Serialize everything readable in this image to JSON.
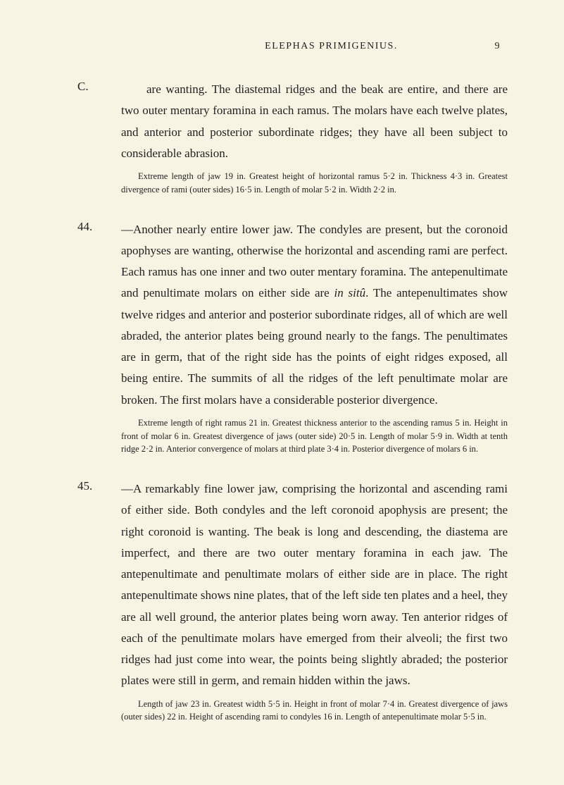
{
  "header": {
    "running_title": "ELEPHAS PRIMIGENIUS.",
    "page_number": "9"
  },
  "entries": [
    {
      "label": "C.",
      "paragraphs": [
        "are wanting. The diastemal ridges and the beak are entire, and there are two outer mentary foramina in each ramus. The molars have each twelve plates, and anterior and posterior subordinate ridges; they have all been subject to considerable abrasion."
      ],
      "note": "Extreme length of jaw 19 in. Greatest height of horizontal ramus 5·2 in. Thickness 4·3 in. Greatest divergence of rami (outer sides) 16·5 in. Length of molar 5·2 in. Width 2·2 in."
    },
    {
      "label": "44.",
      "paragraphs": [
        "—Another nearly entire lower jaw. The condyles are present, but the coronoid apophyses are wanting, otherwise the horizontal and ascending rami are perfect. Each ramus has one inner and two outer mentary foramina. The antepenultimate and penultimate molars on either side are ",
        "in sitû",
        ". The antepenultimates show twelve ridges and anterior and posterior subordinate ridges, all of which are well abraded, the anterior plates being ground nearly to the fangs. The penultimates are in germ, that of the right side has the points of eight ridges exposed, all being entire. The summits of all the ridges of the left penultimate molar are broken. The first molars have a considerable posterior divergence."
      ],
      "note": "Extreme length of right ramus 21 in. Greatest thickness anterior to the ascending ramus 5 in. Height in front of molar 6 in. Greatest divergence of jaws (outer side) 20·5 in. Length of molar 5·9 in. Width at tenth ridge 2·2 in. Anterior convergence of molars at third plate 3·4 in. Posterior divergence of molars 6 in."
    },
    {
      "label": "45.",
      "paragraphs": [
        "—A remarkably fine lower jaw, comprising the horizontal and ascending rami of either side. Both condyles and the left coronoid apophysis are present; the right coronoid is wanting. The beak is long and descending, the diastema are imperfect, and there are two outer mentary foramina in each jaw. The antepenultimate and penultimate molars of either side are in place. The right antepenultimate shows nine plates, that of the left side ten plates and a heel, they are all well ground, the anterior plates being worn away. Ten anterior ridges of each of the penultimate molars have emerged from their alveoli; the first two ridges had just come into wear, the points being slightly abraded; the posterior plates were still in germ, and remain hidden within the jaws."
      ],
      "note": "Length of jaw 23 in. Greatest width 5·5 in. Height in front of molar 7·4 in. Greatest divergence of jaws (outer sides) 22 in. Height of ascending rami to condyles 16 in. Length of antepenultimate molar 5·5 in."
    }
  ]
}
